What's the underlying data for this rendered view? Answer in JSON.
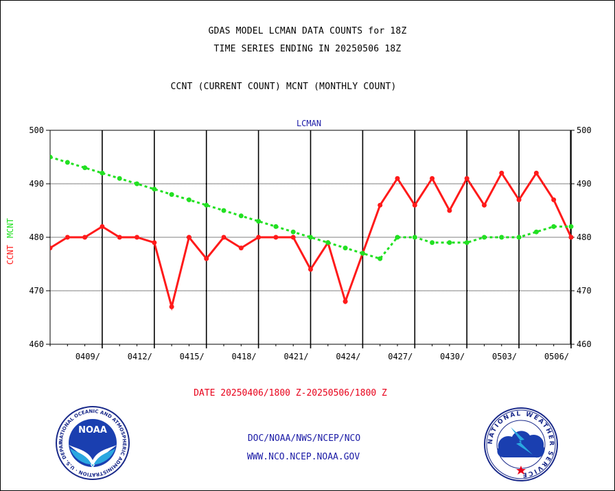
{
  "header": {
    "line1": "GDAS MODEL LCMAN DATA COUNTS for 18Z",
    "line2": "TIME SERIES ENDING IN 20250506 18Z",
    "line3": "CCNT (CURRENT COUNT) MCNT (MONTHLY COUNT)"
  },
  "chart_data": {
    "type": "line",
    "title": "LCMAN",
    "ylabel_parts": [
      "CCNT",
      "MCNT"
    ],
    "ylim": [
      460,
      500
    ],
    "yticks": [
      460,
      470,
      480,
      490,
      500
    ],
    "date_label": "DATE 20250406/1800 Z-20250506/1800 Z",
    "x_tick_labels": [
      "0409/",
      "0412/",
      "0415/",
      "0418/",
      "0421/",
      "0424/",
      "0427/",
      "0430/",
      "0503/",
      "0506/"
    ],
    "grid": true,
    "colors": {
      "ccnt": "#ff1a1a",
      "mcnt": "#22e022",
      "title": "#1a1aa6",
      "date": "#e8001a"
    },
    "series": [
      {
        "name": "CCNT",
        "style": "solid",
        "values": [
          478,
          480,
          480,
          482,
          480,
          480,
          479,
          467,
          480,
          476,
          480,
          478,
          480,
          480,
          480,
          474,
          479,
          468,
          477,
          486,
          491,
          486,
          491,
          485,
          491,
          486,
          492,
          487,
          492,
          487,
          480
        ]
      },
      {
        "name": "MCNT",
        "style": "dotted",
        "values": [
          495,
          494,
          493,
          492,
          491,
          490,
          489,
          488,
          487,
          486,
          485,
          484,
          483,
          482,
          481,
          480,
          479,
          478,
          477,
          476,
          480,
          480,
          479,
          479,
          479,
          480,
          480,
          480,
          481,
          482,
          482
        ]
      }
    ]
  },
  "footer": {
    "line1": "DOC/NOAA/NWS/NCEP/NCO",
    "line2": "WWW.NCO.NCEP.NOAA.GOV"
  },
  "logos": {
    "noaa": {
      "name": "noaa-logo",
      "text": "NOAA",
      "ring_text": "NATIONAL OCEANIC AND ATMOSPHERIC ADMINISTRATION · U.S. DEPARTMENT OF COMMERCE"
    },
    "nws": {
      "name": "nws-logo",
      "ring_text": "NATIONAL WEATHER SERVICE"
    }
  }
}
